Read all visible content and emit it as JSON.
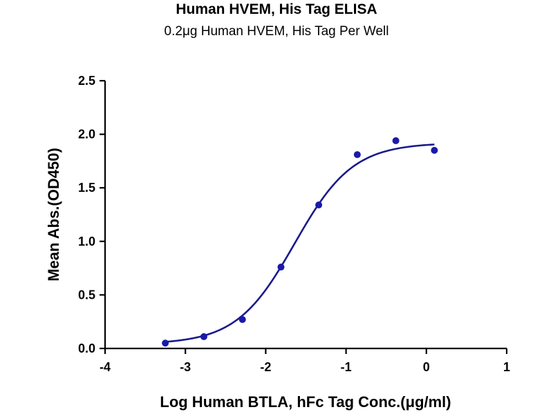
{
  "chart_data": {
    "type": "scatter",
    "title": "Human HVEM, His Tag ELISA",
    "subtitle": "0.2μg Human HVEM, His Tag Per Well",
    "xlabel": "Log Human BTLA, hFc Tag Conc.(μg/ml)",
    "ylabel": "Mean Abs.(OD450)",
    "xlim": [
      -4,
      1
    ],
    "ylim": [
      0,
      2.5
    ],
    "x_ticks": [
      "-4",
      "-3",
      "-2",
      "-1",
      "0",
      "1"
    ],
    "y_ticks": [
      "0.0",
      "0.5",
      "1.0",
      "1.5",
      "2.0",
      "2.5"
    ],
    "grid": false,
    "legend": "none",
    "series": [
      {
        "x": [
          -3.25,
          -2.77,
          -2.29,
          -1.81,
          -1.34,
          -0.86,
          -0.38,
          0.1
        ],
        "y": [
          0.05,
          0.11,
          0.27,
          0.76,
          1.34,
          1.81,
          1.94,
          1.85
        ]
      }
    ],
    "fit_curve": {
      "model": "4PL",
      "bottom": 0.04,
      "top": 1.92,
      "logEC50": -1.64,
      "hill_slope": 1.2
    },
    "colors": {
      "points": "#1a1aaa",
      "curve": "#1a1a8c",
      "axes": "#000000"
    }
  }
}
